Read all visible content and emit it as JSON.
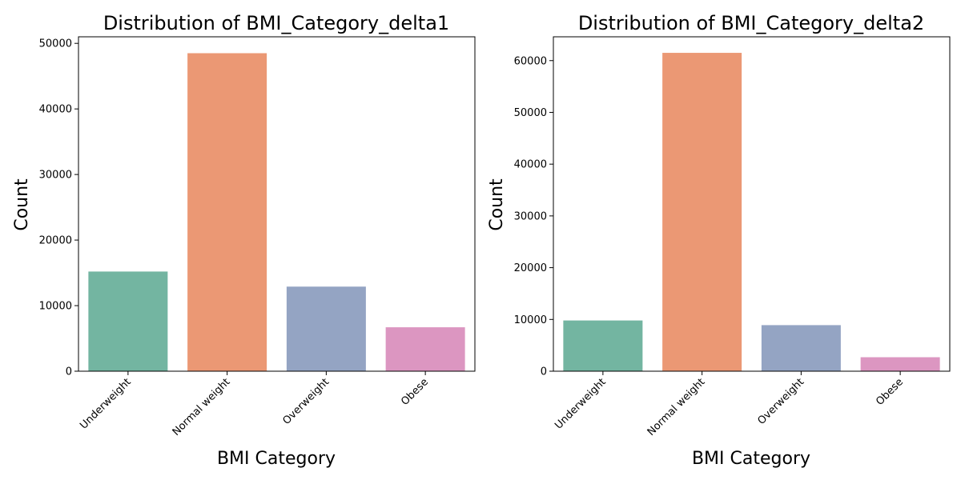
{
  "chart_data": [
    {
      "type": "bar",
      "title": "Distribution of BMI_Category_delta1",
      "xlabel": "BMI Category",
      "ylabel": "Count",
      "categories": [
        "Underweight",
        "Normal weight",
        "Overweight",
        "Obese"
      ],
      "values": [
        15200,
        48500,
        12900,
        6700
      ],
      "colors": [
        "#73b5a1",
        "#eb9874",
        "#94a4c3",
        "#dc96c1"
      ],
      "ylim": [
        0,
        51000
      ],
      "yticks": [
        0,
        10000,
        20000,
        30000,
        40000,
        50000
      ],
      "ytick_labels": [
        "0",
        "10000",
        "20000",
        "30000",
        "40000",
        "50000"
      ],
      "grid": false,
      "legend": "none"
    },
    {
      "type": "bar",
      "title": "Distribution of BMI_Category_delta2",
      "xlabel": "BMI Category",
      "ylabel": "Count",
      "categories": [
        "Underweight",
        "Normal weight",
        "Overweight",
        "Obese"
      ],
      "values": [
        9800,
        61500,
        8900,
        2700
      ],
      "colors": [
        "#73b5a1",
        "#eb9874",
        "#94a4c3",
        "#dc96c1"
      ],
      "ylim": [
        0,
        64600
      ],
      "yticks": [
        0,
        10000,
        20000,
        30000,
        40000,
        50000,
        60000
      ],
      "ytick_labels": [
        "0",
        "10000",
        "20000",
        "30000",
        "40000",
        "50000",
        "60000"
      ],
      "grid": false,
      "legend": "none"
    }
  ]
}
